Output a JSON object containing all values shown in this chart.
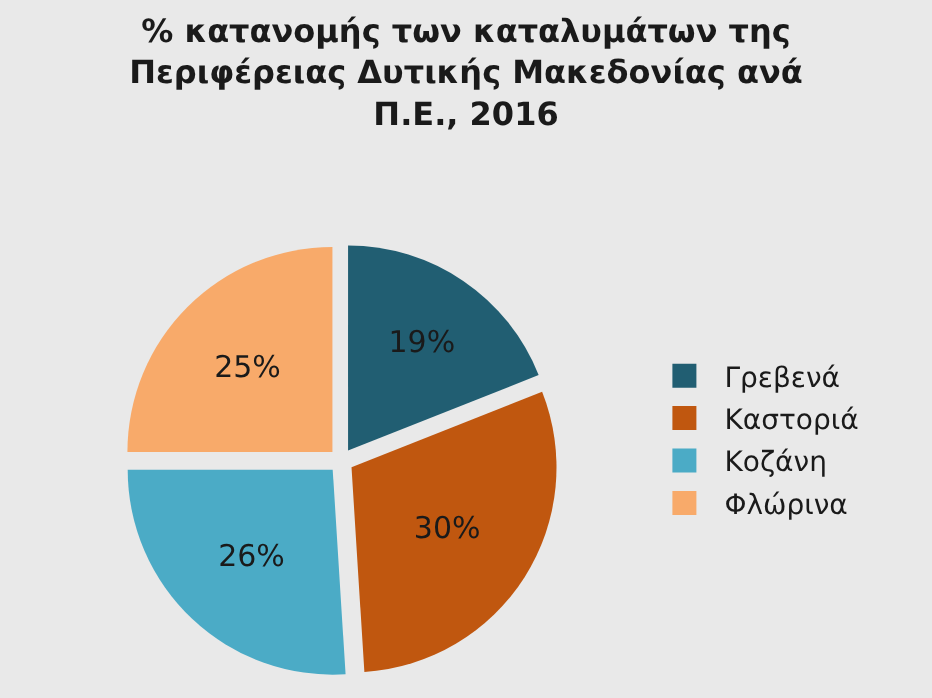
{
  "chart_data": {
    "type": "pie",
    "title": "% κατανομής των καταλυμάτων της\nΠεριφέρειας Δυτικής Μακεδονίας ανά\nΠ.Ε., 2016",
    "categories": [
      "Γρεβενά",
      "Καστοριά",
      "Κοζάνη",
      "Φλώρινα"
    ],
    "values": [
      19,
      30,
      26,
      25
    ],
    "value_labels": [
      "19%",
      "30%",
      "26%",
      "25%"
    ],
    "colors": [
      "#215e72",
      "#c0570f",
      "#4babc6",
      "#f8aa6a"
    ],
    "legend": "right"
  }
}
